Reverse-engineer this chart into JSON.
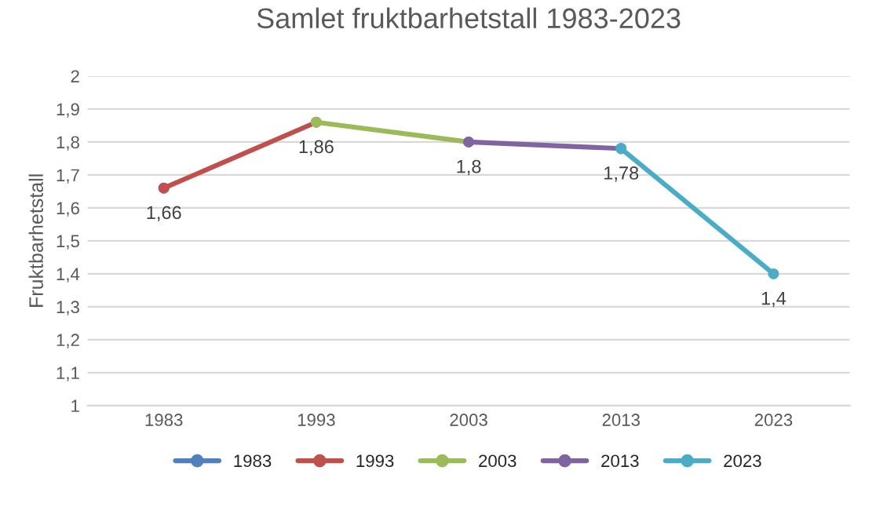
{
  "chart_data": {
    "type": "line",
    "title": "Samlet fruktbarhetstall 1983-2023",
    "ylabel": "Fruktbarhetstall",
    "categories": [
      "1983",
      "1993",
      "2003",
      "2013",
      "2023"
    ],
    "series": [
      {
        "name": "1983",
        "color": "#4f81bd",
        "values": [
          1.66,
          null,
          null,
          null,
          null
        ],
        "value_labels": [
          "1,66",
          null,
          null,
          null,
          null
        ]
      },
      {
        "name": "1993",
        "color": "#c0504d",
        "values": [
          1.66,
          1.86,
          null,
          null,
          null
        ],
        "value_labels": [
          null,
          "1,86",
          null,
          null,
          null
        ]
      },
      {
        "name": "2003",
        "color": "#9bbb59",
        "values": [
          null,
          1.86,
          1.8,
          null,
          null
        ],
        "value_labels": [
          null,
          null,
          "1,8",
          null,
          null
        ]
      },
      {
        "name": "2013",
        "color": "#8064a2",
        "values": [
          null,
          null,
          1.8,
          1.78,
          null
        ],
        "value_labels": [
          null,
          null,
          null,
          "1,78",
          null
        ]
      },
      {
        "name": "2023",
        "color": "#4bacc6",
        "values": [
          null,
          null,
          null,
          1.78,
          1.4
        ],
        "value_labels": [
          null,
          null,
          null,
          null,
          "1,4"
        ]
      }
    ],
    "ylim": [
      1,
      2
    ],
    "yticks": [
      {
        "value": 1,
        "label": "1"
      },
      {
        "value": 1.1,
        "label": "1,1"
      },
      {
        "value": 1.2,
        "label": "1,2"
      },
      {
        "value": 1.3,
        "label": "1,3"
      },
      {
        "value": 1.4,
        "label": "1,4"
      },
      {
        "value": 1.5,
        "label": "1,5"
      },
      {
        "value": 1.6,
        "label": "1,6"
      },
      {
        "value": 1.7,
        "label": "1,7"
      },
      {
        "value": 1.8,
        "label": "1,8"
      },
      {
        "value": 1.9,
        "label": "1,9"
      },
      {
        "value": 2,
        "label": "2"
      }
    ],
    "grid": "y",
    "legend": "bottom",
    "marker": "circle",
    "line_style": "solid"
  }
}
